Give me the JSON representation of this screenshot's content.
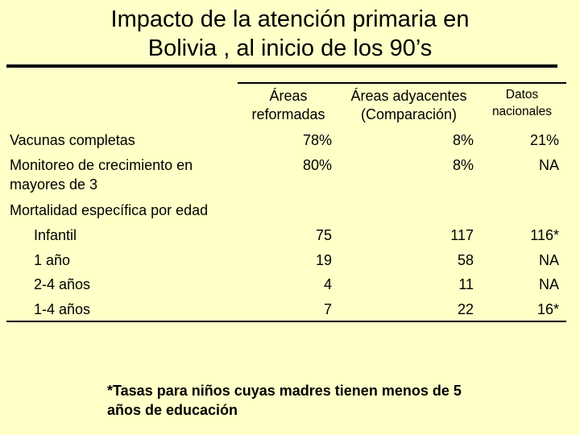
{
  "title": {
    "line1": "Impacto de la atención primaria en",
    "line2": "Bolivia , al inicio de los 90’s"
  },
  "columns": [
    {
      "line1": "Áreas",
      "line2": "reformadas"
    },
    {
      "line1": "Áreas adyacentes",
      "line2": "(Comparación)"
    },
    {
      "line1": "Datos",
      "line2": "nacionales"
    }
  ],
  "rows": [
    {
      "label": "Vacunas completas",
      "v1": "78%",
      "v2": "8%",
      "v3": "21%"
    },
    {
      "label": "Monitoreo de crecimiento en",
      "label2": "mayores de 3",
      "v1": "80%",
      "v2": "8%",
      "v3": "NA"
    },
    {
      "label": "Mortalidad específica por edad"
    },
    {
      "label": "Infantil",
      "v1": "75",
      "v2": "117",
      "v3": "116*"
    },
    {
      "label": "1 año",
      "v1": "19",
      "v2": "58",
      "v3": "NA"
    },
    {
      "label": "2-4 años",
      "v1": "4",
      "v2": "11",
      "v3": "NA"
    },
    {
      "label": "1-4 años",
      "v1": "7",
      "v2": "22",
      "v3": "16*"
    }
  ],
  "footnote": {
    "line1": "*Tasas para niños cuyas madres tienen menos de 5",
    "line2": "años de educación"
  }
}
